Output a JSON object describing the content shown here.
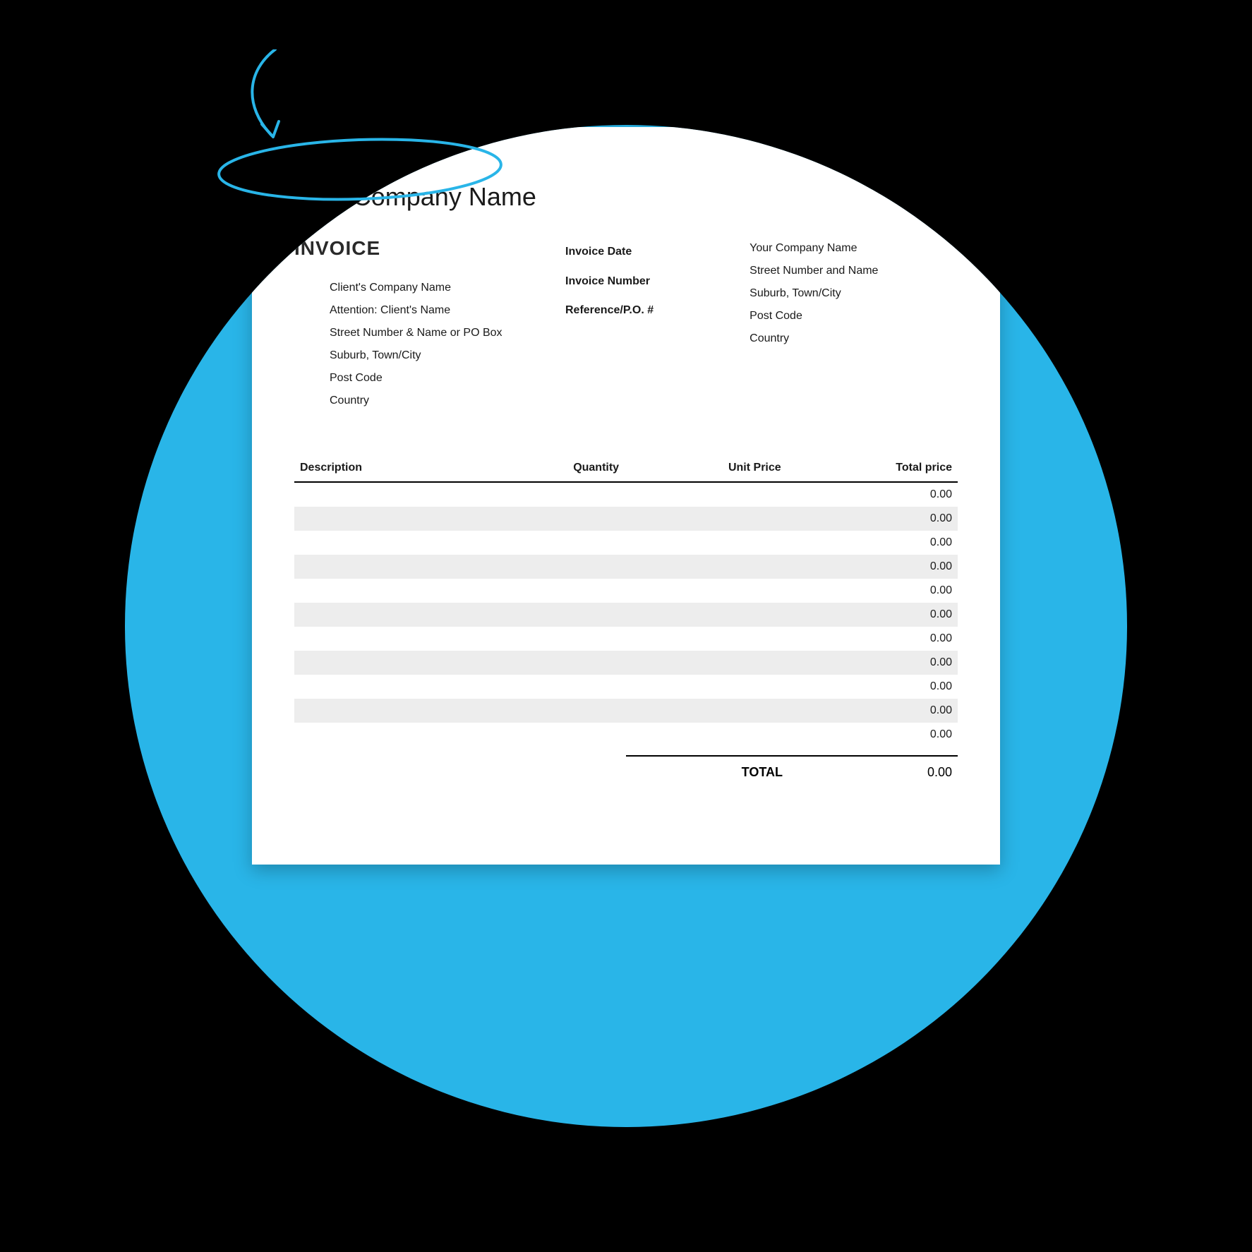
{
  "style": {
    "background_color": "#000000",
    "circle_color": "#29b5e8",
    "document_bg": "#ffffff",
    "text_color": "#1a1a1a",
    "row_stripe_color": "#ededed",
    "rule_color": "#000000",
    "annotation_color": "#29b5e8",
    "annotation_stroke_width": 4,
    "company_name_fontsize": 36,
    "invoice_heading_fontsize": 28,
    "body_fontsize": 16
  },
  "company_name": "Your Company Name",
  "invoice_heading": "INVOICE",
  "client": {
    "lines": [
      "Client's Company Name",
      "Attention: Client's Name",
      "Street Number & Name or PO Box",
      "Suburb, Town/City",
      "Post Code",
      "Country"
    ]
  },
  "meta_labels": {
    "date": "Invoice Date",
    "number": "Invoice Number",
    "reference": "Reference/P.O. #"
  },
  "sender": {
    "lines": [
      "Your Company Name",
      "Street Number and Name",
      "Suburb, Town/City",
      "Post Code",
      "Country"
    ]
  },
  "table": {
    "columns": [
      "Description",
      "Quantity",
      "Unit Price",
      "Total price"
    ],
    "col_align": [
      "left",
      "right",
      "right",
      "right"
    ],
    "rows": [
      {
        "description": "",
        "quantity": "",
        "unit_price": "",
        "total_price": "0.00"
      },
      {
        "description": "",
        "quantity": "",
        "unit_price": "",
        "total_price": "0.00"
      },
      {
        "description": "",
        "quantity": "",
        "unit_price": "",
        "total_price": "0.00"
      },
      {
        "description": "",
        "quantity": "",
        "unit_price": "",
        "total_price": "0.00"
      },
      {
        "description": "",
        "quantity": "",
        "unit_price": "",
        "total_price": "0.00"
      },
      {
        "description": "",
        "quantity": "",
        "unit_price": "",
        "total_price": "0.00"
      },
      {
        "description": "",
        "quantity": "",
        "unit_price": "",
        "total_price": "0.00"
      },
      {
        "description": "",
        "quantity": "",
        "unit_price": "",
        "total_price": "0.00"
      },
      {
        "description": "",
        "quantity": "",
        "unit_price": "",
        "total_price": "0.00"
      },
      {
        "description": "",
        "quantity": "",
        "unit_price": "",
        "total_price": "0.00"
      },
      {
        "description": "",
        "quantity": "",
        "unit_price": "",
        "total_price": "0.00"
      }
    ]
  },
  "totals": {
    "label": "TOTAL",
    "value": "0.00"
  }
}
